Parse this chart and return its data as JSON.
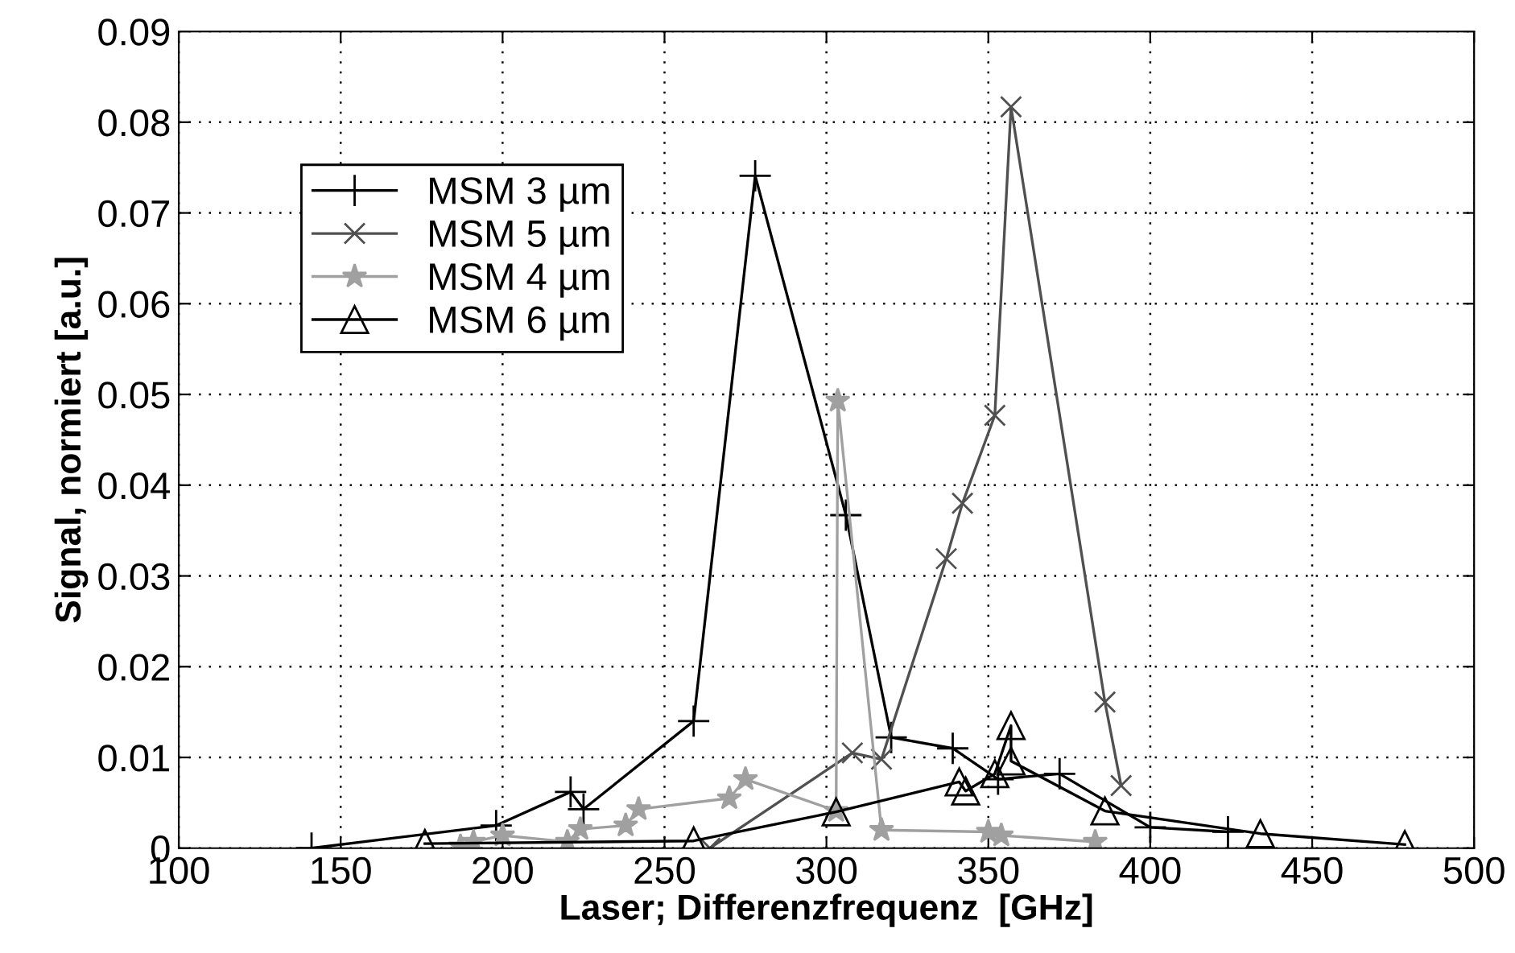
{
  "chart_data": {
    "type": "line",
    "xlabel": "Laser; Differenzfrequenz  [GHz]",
    "ylabel": "Signal, normiert [a.u.]",
    "xlim": [
      100,
      500
    ],
    "xticks": [
      100,
      150,
      200,
      250,
      300,
      350,
      400,
      450,
      500
    ],
    "ylim": [
      0,
      0.09
    ],
    "yticks": [
      0,
      0.01,
      0.02,
      0.03,
      0.04,
      0.05,
      0.06,
      0.07,
      0.08,
      0.09
    ],
    "grid": true,
    "legend": "top left",
    "line_style": "solid",
    "series": [
      {
        "name": "MSM 3 µm",
        "color": "#000000",
        "marker": "cross",
        "x": [
          141,
          198,
          221,
          225,
          259,
          278,
          306,
          320,
          339,
          353,
          372,
          400,
          424
        ],
        "values": [
          0,
          0.0025,
          0.0062,
          0.0043,
          0.014,
          0.0741,
          0.0367,
          0.0122,
          0.011,
          0.0076,
          0.0082,
          0.0023,
          0.0018
        ]
      },
      {
        "name": "MSM 5 µm",
        "color": "#505050",
        "marker": "x",
        "x": [
          264,
          308,
          317,
          337,
          342,
          352,
          357,
          386,
          391
        ],
        "values": [
          0,
          0.0105,
          0.0098,
          0.0319,
          0.038,
          0.0477,
          0.0817,
          0.0161,
          0.0069
        ]
      },
      {
        "name": "MSM 4 µm",
        "color": "#a0a0a0",
        "marker": "star",
        "x": [
          187,
          191,
          200,
          220,
          224,
          238,
          242,
          270,
          275,
          303,
          303.5,
          317,
          350,
          354,
          383
        ],
        "values": [
          0.0002,
          0.0007,
          0.0014,
          0.0007,
          0.0021,
          0.0025,
          0.0043,
          0.0055,
          0.0076,
          0.0041,
          0.0493,
          0.002,
          0.0018,
          0.0014,
          0.0007
        ]
      },
      {
        "name": "MSM 6 µm",
        "color": "#000000",
        "marker": "triangle",
        "x": [
          176,
          259,
          303,
          341,
          343,
          352,
          357,
          357,
          386,
          434,
          478.6
        ],
        "values": [
          0.0005,
          0.0008,
          0.004,
          0.0073,
          0.0063,
          0.0082,
          0.0135,
          0.0096,
          0.0041,
          0.0016,
          0.0004
        ]
      }
    ]
  }
}
